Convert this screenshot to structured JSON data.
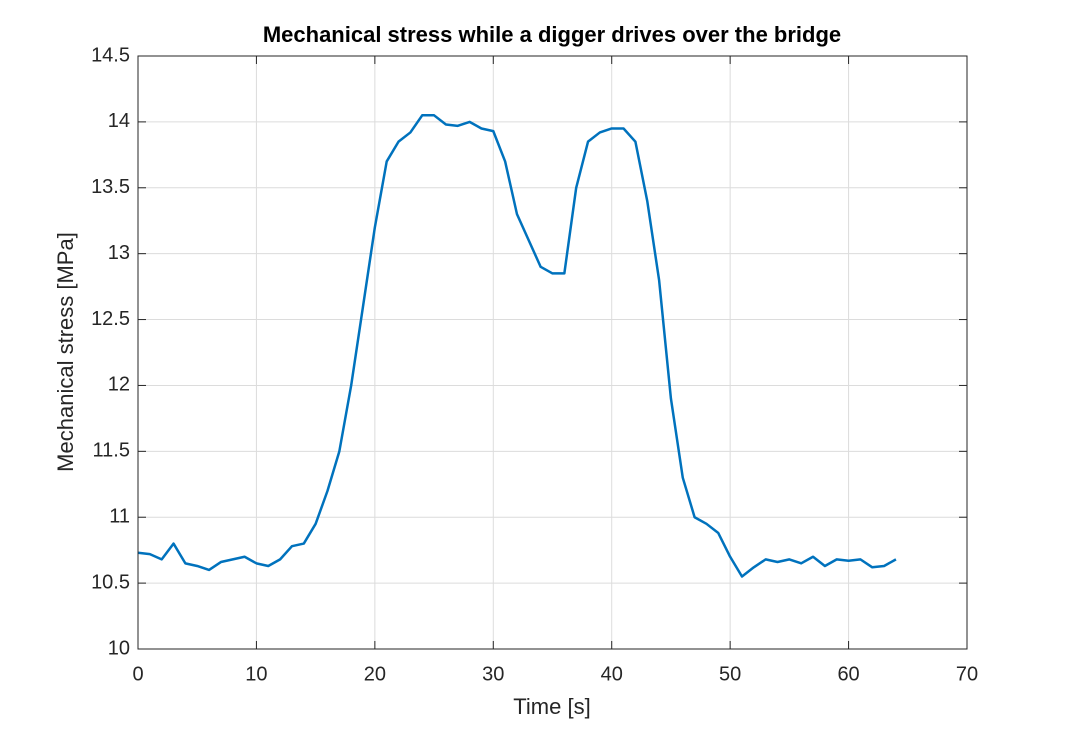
{
  "chart_data": {
    "type": "line",
    "title": "Mechanical stress while a digger drives over the bridge",
    "x_label": "Time [s]",
    "y_label": "Mechanical stress [MPa]",
    "x": [
      0,
      1,
      2,
      3,
      4,
      5,
      6,
      7,
      8,
      9,
      10,
      11,
      12,
      13,
      14,
      15,
      16,
      17,
      18,
      19,
      20,
      21,
      22,
      23,
      24,
      25,
      26,
      27,
      28,
      29,
      30,
      31,
      32,
      33,
      34,
      35,
      36,
      37,
      38,
      39,
      40,
      41,
      42,
      43,
      44,
      45,
      46,
      47,
      48,
      49,
      50,
      51,
      52,
      53,
      54,
      55,
      56,
      57,
      58,
      59,
      60,
      61,
      62,
      63,
      64
    ],
    "series": [
      {
        "name": "Mechanical stress",
        "color": "#0072bd",
        "values": [
          10.73,
          10.72,
          10.68,
          10.8,
          10.65,
          10.63,
          10.6,
          10.66,
          10.68,
          10.7,
          10.65,
          10.63,
          10.68,
          10.78,
          10.8,
          10.95,
          11.2,
          11.5,
          12.0,
          12.6,
          13.2,
          13.7,
          13.85,
          13.92,
          14.05,
          14.05,
          13.98,
          13.97,
          14.0,
          13.95,
          13.93,
          13.7,
          13.3,
          13.1,
          12.9,
          12.85,
          12.85,
          13.5,
          13.85,
          13.92,
          13.95,
          13.95,
          13.85,
          13.4,
          12.8,
          11.9,
          11.3,
          11.0,
          10.95,
          10.88,
          10.7,
          10.55,
          10.62,
          10.68,
          10.66,
          10.68,
          10.65,
          10.7,
          10.63,
          10.68,
          10.67,
          10.68,
          10.62,
          10.63,
          10.68
        ]
      }
    ],
    "xlim": [
      0,
      70
    ],
    "xticks": [
      0,
      10,
      20,
      30,
      40,
      50,
      60,
      70
    ],
    "ylim": [
      10,
      14.5
    ],
    "yticks": [
      10,
      10.5,
      11,
      11.5,
      12,
      12.5,
      13,
      13.5,
      14,
      14.5
    ],
    "grid": true
  }
}
